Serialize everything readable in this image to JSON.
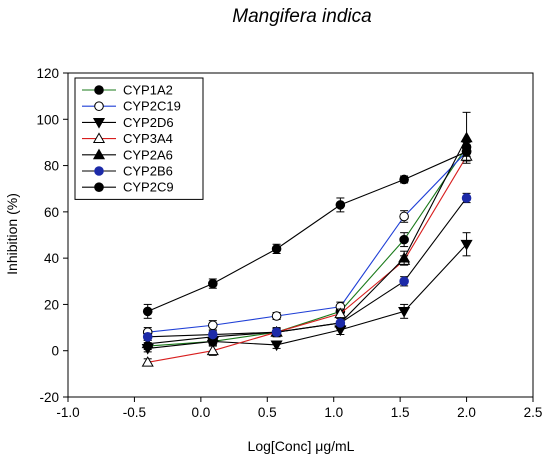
{
  "chart_data": {
    "type": "line",
    "title": "Mangifera indica",
    "xlabel": "Log[Conc] μg/mL",
    "ylabel": "Inhibition (%)",
    "xlim": [
      -1.0,
      2.5
    ],
    "ylim": [
      -20,
      120
    ],
    "xticks": [
      "-1.0",
      "-0.5",
      "0.0",
      "0.5",
      "1.0",
      "1.5",
      "2.0",
      "2.5"
    ],
    "yticks": [
      "-20",
      "0",
      "20",
      "40",
      "60",
      "80",
      "100",
      "120"
    ],
    "x": [
      -0.4,
      0.09,
      0.57,
      1.05,
      1.53,
      2.0
    ],
    "legend_position": "top-left",
    "series": [
      {
        "name": "CYP1A2",
        "color": "#1a7a1a",
        "marker": "circle-filled",
        "markerColor": "#000000",
        "values": [
          2,
          4,
          8,
          17,
          48,
          88
        ],
        "errors": [
          1.5,
          1.5,
          1.5,
          2,
          3,
          2
        ]
      },
      {
        "name": "CYP2C19",
        "color": "#1f3fd6",
        "marker": "circle-open",
        "markerColor": "#000000",
        "values": [
          8,
          11,
          15,
          19,
          58,
          86
        ],
        "errors": [
          2,
          2,
          1.5,
          2,
          2.5,
          2
        ]
      },
      {
        "name": "CYP2D6",
        "color": "#000000",
        "marker": "triangle-down-filled",
        "markerColor": "#000000",
        "values": [
          1,
          4,
          2.5,
          9,
          17,
          46
        ],
        "errors": [
          1.5,
          1.5,
          1.5,
          2,
          3,
          5
        ]
      },
      {
        "name": "CYP3A4",
        "color": "#d81e1e",
        "marker": "triangle-open",
        "markerColor": "#000000",
        "values": [
          -5,
          0,
          8,
          16,
          39,
          84
        ],
        "errors": [
          1.5,
          2,
          1.5,
          2,
          2,
          2
        ]
      },
      {
        "name": "CYP2A6",
        "color": "#000000",
        "marker": "triangle-up-filled",
        "markerColor": "#000000",
        "values": [
          3,
          6,
          8,
          12,
          40,
          92
        ],
        "errors": [
          1.5,
          1.5,
          2,
          2,
          3,
          11
        ]
      },
      {
        "name": "CYP2B6",
        "color": "#000000",
        "marker": "circle-filled",
        "markerColor": "#1c2aa8",
        "values": [
          6,
          7,
          8,
          12,
          30,
          66
        ],
        "errors": [
          1.5,
          1.5,
          1.5,
          2,
          2,
          2
        ]
      },
      {
        "name": "CYP2C9",
        "color": "#000000",
        "marker": "circle-filled",
        "markerColor": "#000000",
        "values": [
          17,
          29,
          44,
          63,
          74,
          86
        ],
        "errors": [
          3,
          2,
          2,
          3,
          1.5,
          2
        ]
      }
    ]
  }
}
